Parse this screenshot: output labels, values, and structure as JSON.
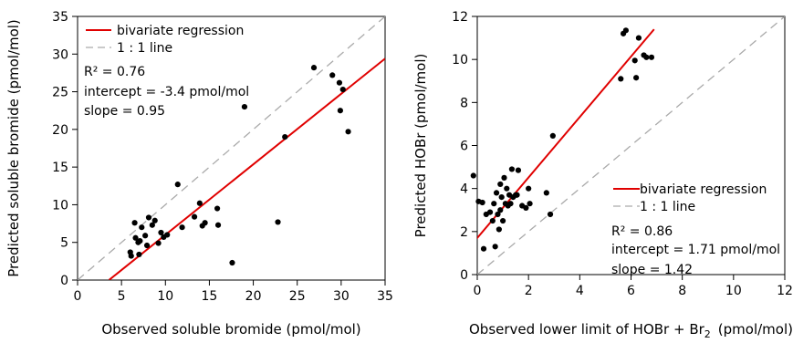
{
  "chart_data": [
    {
      "type": "scatter",
      "xlabel": "Observed soluble bromide (pmol/mol)",
      "ylabel": "Predicted soluble bromide (pmol/mol)",
      "xlim": [
        0,
        35
      ],
      "ylim": [
        0,
        35
      ],
      "xticks": [
        0,
        5,
        10,
        15,
        20,
        25,
        30,
        35
      ],
      "yticks": [
        0,
        5,
        10,
        15,
        20,
        25,
        30,
        35
      ],
      "legend": [
        {
          "label": "bivariate regression",
          "color": "#e00000",
          "style": "solid"
        },
        {
          "label": "1 : 1 line",
          "color": "#aaaaaa",
          "style": "dashed"
        }
      ],
      "stats": {
        "r2": "R² = 0.76",
        "intercept": "intercept = -3.4 pmol/mol",
        "slope": "slope = 0.95"
      },
      "regression": {
        "x": [
          3.6,
          35
        ],
        "y": [
          0.02,
          29.4
        ]
      },
      "identity": {
        "x": [
          0,
          35
        ],
        "y": [
          0,
          35
        ]
      },
      "points": {
        "x": [
          6.0,
          6.1,
          6.5,
          6.6,
          6.9,
          7.0,
          7.1,
          7.3,
          7.7,
          7.9,
          8.1,
          8.5,
          8.8,
          9.2,
          9.5,
          9.8,
          10.2,
          11.4,
          11.9,
          13.3,
          13.9,
          14.2,
          14.5,
          15.9,
          16.0,
          17.6,
          19.0,
          22.8,
          23.6,
          26.9,
          29.0,
          29.8,
          29.9,
          30.2,
          30.8
        ],
        "y": [
          3.7,
          3.2,
          7.6,
          5.6,
          5.0,
          3.4,
          5.2,
          7.0,
          5.9,
          4.6,
          8.3,
          7.3,
          7.9,
          4.9,
          6.3,
          5.7,
          6.0,
          12.7,
          7.0,
          8.4,
          10.2,
          7.2,
          7.6,
          9.5,
          7.3,
          2.3,
          23.0,
          7.7,
          19.0,
          28.2,
          27.2,
          26.2,
          22.5,
          25.3,
          19.7
        ]
      }
    },
    {
      "type": "scatter",
      "xlabel": "Observed lower limit of HOBr + Br",
      "xlabel_sub": "2",
      "xlabel_unit": "(pmol/mol)",
      "ylabel": "Predicted HOBr (pmol/mol)",
      "xlim": [
        0,
        12
      ],
      "ylim": [
        0,
        12
      ],
      "xticks": [
        0,
        2,
        4,
        6,
        8,
        10,
        12
      ],
      "yticks": [
        0,
        2,
        4,
        6,
        8,
        10,
        12
      ],
      "legend": [
        {
          "label": "bivariate regression",
          "color": "#e00000",
          "style": "solid"
        },
        {
          "label": "1 : 1 line",
          "color": "#aaaaaa",
          "style": "dashed"
        }
      ],
      "stats": {
        "r2": "R² = 0.86",
        "intercept": "intercept = 1.71 pmol/mol",
        "slope": "slope = 1.42"
      },
      "regression": {
        "x": [
          -0.3,
          6.9
        ],
        "y": [
          1.28,
          11.4
        ]
      },
      "identity": {
        "x": [
          0,
          12
        ],
        "y": [
          0,
          12
        ]
      },
      "points": {
        "x": [
          -0.15,
          0.05,
          0.2,
          0.25,
          0.35,
          0.5,
          0.6,
          0.65,
          0.7,
          0.75,
          0.8,
          0.85,
          0.9,
          0.9,
          0.95,
          1.0,
          1.05,
          1.1,
          1.15,
          1.2,
          1.25,
          1.3,
          1.35,
          1.4,
          1.5,
          1.55,
          1.6,
          1.75,
          1.9,
          2.0,
          2.05,
          2.7,
          2.85,
          2.95,
          5.6,
          5.7,
          5.8,
          6.15,
          6.2,
          6.3,
          6.5,
          6.6,
          6.8
        ],
        "y": [
          4.6,
          3.4,
          3.35,
          1.2,
          2.8,
          2.9,
          2.5,
          3.3,
          1.3,
          3.8,
          2.8,
          2.1,
          3.0,
          4.2,
          3.6,
          2.5,
          4.5,
          3.3,
          4.0,
          3.2,
          3.7,
          3.3,
          4.9,
          3.6,
          3.7,
          3.7,
          4.85,
          3.2,
          3.1,
          4.0,
          3.3,
          3.8,
          2.8,
          6.45,
          9.1,
          11.2,
          11.35,
          9.95,
          9.15,
          11.0,
          10.2,
          10.1,
          10.1
        ]
      }
    }
  ]
}
